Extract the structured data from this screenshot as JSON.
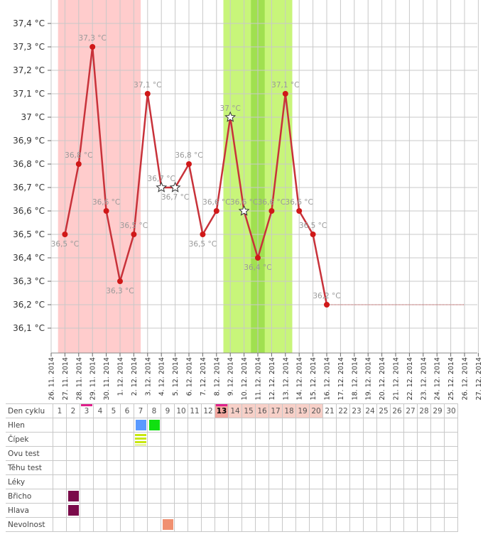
{
  "chart_data": {
    "type": "line",
    "ylim": [
      36.0,
      37.5
    ],
    "y_ticks": [
      "37,4 °C",
      "37,3 °C",
      "37,2 °C",
      "37,1 °C",
      "37 °C",
      "36,9 °C",
      "36,8 °C",
      "36,7 °C",
      "36,6 °C",
      "36,5 °C",
      "36,4 °C",
      "36,3 °C",
      "36,2 °C",
      "36,1 °C"
    ],
    "y_tick_values": [
      37.4,
      37.3,
      37.2,
      37.1,
      37.0,
      36.9,
      36.8,
      36.7,
      36.6,
      36.5,
      36.4,
      36.3,
      36.2,
      36.1
    ],
    "dates": [
      "26. 11. 2014",
      "27. 11. 2014",
      "28. 11. 2014",
      "29. 11. 2014",
      "30. 11. 2014",
      "1. 12. 2014",
      "2. 12. 2014",
      "3. 12. 2014",
      "4. 12. 2014",
      "5. 12. 2014",
      "6. 12. 2014",
      "7. 12. 2014",
      "8. 12. 2014",
      "9. 12. 2014",
      "10. 12. 2014",
      "11. 12. 2014",
      "12. 12. 2014",
      "13. 12. 2014",
      "14. 12. 2014",
      "15. 12. 2014",
      "16. 12. 2014",
      "17. 12. 2014",
      "18. 12. 2014",
      "19. 12. 2014",
      "20. 12. 2014",
      "21. 12. 2014",
      "22. 12. 2014",
      "23. 12. 2014",
      "24. 12. 2014",
      "25. 12. 2014",
      "26. 12. 2014",
      "27. 12. 2014"
    ],
    "temps": [
      36.5,
      36.8,
      37.3,
      36.6,
      36.3,
      36.5,
      37.1,
      36.7,
      36.7,
      36.8,
      36.5,
      36.6,
      37.0,
      36.6,
      36.4,
      36.6,
      37.1,
      36.6,
      36.5,
      36.2
    ],
    "temp_labels": [
      "36,5 °C",
      "36,8 °C",
      "37,3 °C",
      "36,6 °C",
      "36,3 °C",
      "36,5 °C",
      "37,1 °C",
      "36,7 °C",
      "36,7 °C",
      "36,8 °C",
      "36,5 °C",
      "36,6 °C",
      "37 °C",
      "36,6 °C",
      "36,4 °C",
      "36,6 °C",
      "37,1 °C",
      "36,6 °C",
      "36,5 °C",
      "36,2 °C"
    ],
    "star_days": [
      8,
      9,
      13,
      14
    ],
    "period_days": [
      1,
      6
    ],
    "fertile_days": [
      13,
      17
    ],
    "peak_days": [
      15,
      15
    ],
    "forecast": {
      "from_day": 20,
      "to_day": 30,
      "value": 36.2
    },
    "colors": {
      "line": "#c8323a",
      "point": "#d01818",
      "period": "#ffcccc",
      "fertile": "#c8f57a",
      "peak": "#a0e050",
      "forecast": "#d08080",
      "grid": "#c8c8c8",
      "label": "#999999"
    }
  },
  "table": {
    "rows": [
      "Den cyklu",
      "Hlen",
      "Čípek",
      "Ovu test",
      "Těhu test",
      "Léky",
      "Břicho",
      "Hlava",
      "Nevolnost"
    ],
    "days": [
      "1",
      "2",
      "3",
      "4",
      "5",
      "6",
      "7",
      "8",
      "9",
      "10",
      "11",
      "12",
      "13",
      "14",
      "15",
      "16",
      "17",
      "18",
      "19",
      "20",
      "21",
      "22",
      "23",
      "24",
      "25",
      "26",
      "27",
      "28",
      "29",
      "30"
    ],
    "marked_days": [
      3,
      13
    ],
    "today_day": 13,
    "fertile_days": [
      14,
      20
    ],
    "entries": [
      {
        "row": 1,
        "day": 7,
        "type": "square",
        "color": "#5a9aff"
      },
      {
        "row": 1,
        "day": 8,
        "type": "square",
        "color": "#10e010"
      },
      {
        "row": 2,
        "day": 7,
        "type": "stripes",
        "color": "#c8e810"
      },
      {
        "row": 6,
        "day": 2,
        "type": "square",
        "color": "#7a0a4a"
      },
      {
        "row": 7,
        "day": 2,
        "type": "square",
        "color": "#7a0a4a"
      },
      {
        "row": 8,
        "day": 9,
        "type": "square",
        "color": "#f09070"
      }
    ]
  }
}
